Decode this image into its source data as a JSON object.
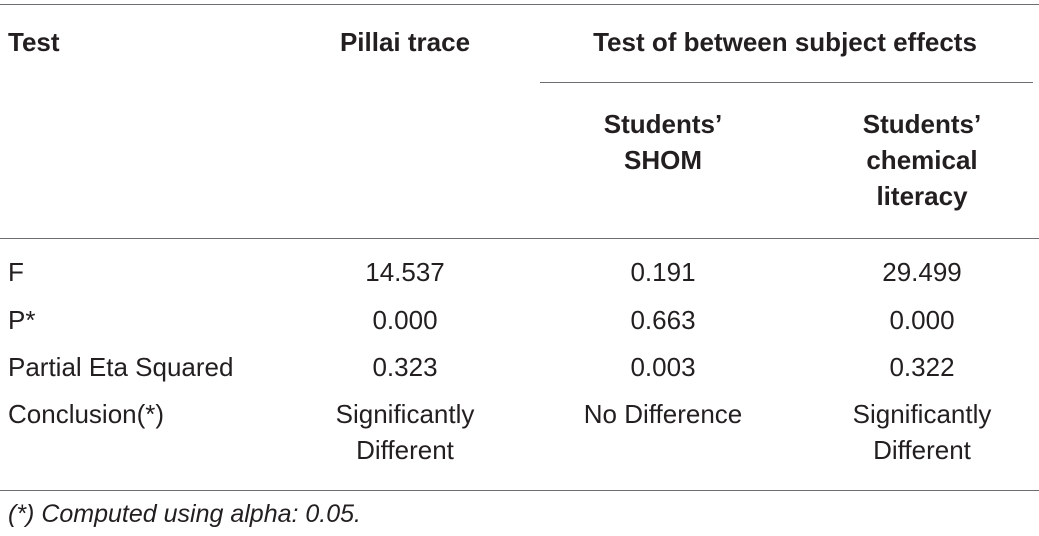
{
  "table": {
    "header": [
      "Test",
      "Pillai trace",
      "Test of between subject effects"
    ],
    "subheaders": [
      [
        "Students’",
        "SHOM"
      ],
      [
        "Students’",
        "chemical",
        "literacy"
      ]
    ],
    "rows": [
      [
        "F",
        "14.537",
        "0.191",
        "29.499"
      ],
      [
        "P*",
        "0.000",
        "0.663",
        "0.000"
      ],
      [
        "Partial Eta Squared",
        "0.323",
        "0.003",
        "0.322"
      ],
      [
        "Conclusion(*)",
        [
          "Significantly",
          "Different"
        ],
        "No Difference",
        [
          "Significantly",
          "Different"
        ]
      ]
    ],
    "footnote": "(*) Computed using alpha: 0.05."
  }
}
